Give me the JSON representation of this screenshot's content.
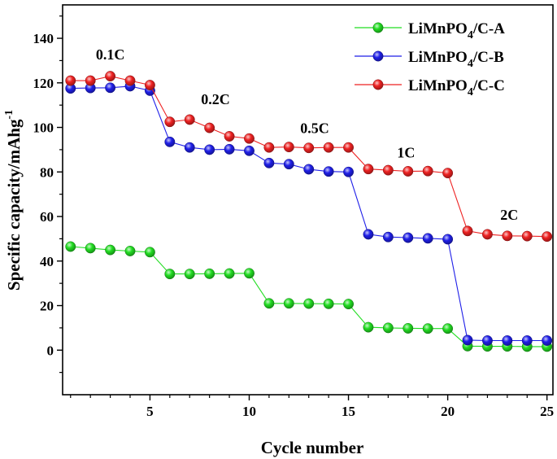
{
  "chart_data": {
    "type": "line",
    "title": "",
    "xlabel": "Cycle number",
    "ylabel": "Specific capacity/mAhg",
    "ylabel_superscript": "-1",
    "xlim": [
      0.6,
      25.3
    ],
    "ylim": [
      -20,
      155
    ],
    "xticks": [
      5,
      10,
      15,
      20,
      25
    ],
    "yticks": [
      0,
      20,
      40,
      60,
      80,
      100,
      120,
      140
    ],
    "x": [
      1,
      2,
      3,
      4,
      5,
      6,
      7,
      8,
      9,
      10,
      11,
      12,
      13,
      14,
      15,
      16,
      17,
      18,
      19,
      20,
      21,
      22,
      23,
      24,
      25
    ],
    "series": [
      {
        "name": "LiMnPO4/C-A",
        "legend_parts": {
          "pre": "LiMnPO",
          "sub": "4",
          "post": "/C-A"
        },
        "color": "#22dd22",
        "values": [
          46.5,
          45.8,
          45.0,
          44.5,
          44.0,
          34.2,
          34.2,
          34.3,
          34.4,
          34.5,
          21.0,
          21.0,
          20.9,
          20.8,
          20.7,
          10.3,
          10.0,
          9.8,
          9.7,
          9.7,
          1.8,
          1.7,
          1.7,
          1.6,
          1.6
        ]
      },
      {
        "name": "LiMnPO4/C-B",
        "legend_parts": {
          "pre": "LiMnPO",
          "sub": "4",
          "post": "/C-B"
        },
        "color": "#1f1fe8",
        "values": [
          117.5,
          117.7,
          117.8,
          118.5,
          116.5,
          93.5,
          91.0,
          90.0,
          90.2,
          89.5,
          84.0,
          83.5,
          81.2,
          80.2,
          80.0,
          52.0,
          50.8,
          50.5,
          50.2,
          49.8,
          4.5,
          4.3,
          4.3,
          4.3,
          4.3
        ]
      },
      {
        "name": "LiMnPO4/C-C",
        "legend_parts": {
          "pre": "LiMnPO",
          "sub": "4",
          "post": "/C-C"
        },
        "color": "#ee2222",
        "values": [
          121.0,
          121.0,
          123.0,
          121.0,
          119.0,
          102.5,
          103.5,
          99.8,
          96.0,
          95.0,
          91.0,
          91.2,
          90.8,
          91.0,
          91.0,
          81.3,
          80.8,
          80.3,
          80.4,
          79.5,
          53.5,
          52.0,
          51.3,
          51.2,
          51.0
        ]
      }
    ],
    "annotations": [
      {
        "text": "0.1C",
        "x": 3.0,
        "y": 130.5
      },
      {
        "text": "0.2C",
        "x": 8.3,
        "y": 110.5
      },
      {
        "text": "0.5C",
        "x": 13.3,
        "y": 97.5
      },
      {
        "text": "1C",
        "x": 17.9,
        "y": 86.5
      },
      {
        "text": "2C",
        "x": 23.1,
        "y": 58.5
      }
    ],
    "legend_position": "top-right",
    "grid": false
  }
}
